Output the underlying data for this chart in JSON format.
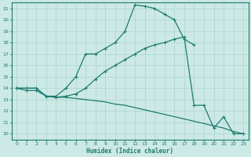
{
  "xlabel": "Humidex (Indice chaleur)",
  "bg_color": "#cce9e5",
  "grid_color": "#b0d8d2",
  "line_color": "#1e7b6e",
  "xlim": [
    -0.5,
    23.5
  ],
  "ylim": [
    9.5,
    21.5
  ],
  "xticks": [
    0,
    1,
    2,
    3,
    4,
    5,
    6,
    7,
    8,
    9,
    10,
    11,
    12,
    13,
    14,
    15,
    16,
    17,
    18,
    19,
    20,
    21,
    22,
    23
  ],
  "yticks": [
    10,
    11,
    12,
    13,
    14,
    15,
    16,
    17,
    18,
    19,
    20,
    21
  ],
  "line1_x": [
    0,
    1,
    2,
    3,
    4,
    5,
    6,
    7,
    8,
    9,
    10,
    11,
    12,
    13,
    14,
    15,
    16,
    17,
    18
  ],
  "line1_y": [
    14,
    13.8,
    13.8,
    13.3,
    13.3,
    14,
    15,
    17,
    17,
    17.5,
    18,
    19,
    21.3,
    21.2,
    21,
    20.5,
    20,
    18.3,
    17.8
  ],
  "line2_x": [
    0,
    1,
    2,
    3,
    4,
    5,
    6,
    7,
    8,
    9,
    10,
    11,
    12,
    13,
    14,
    15,
    16,
    17,
    18,
    19,
    20,
    21,
    22,
    23
  ],
  "line2_y": [
    14,
    14,
    14,
    13.3,
    13.2,
    13.3,
    13.5,
    14,
    14.8,
    15.5,
    16,
    16.5,
    17,
    17.5,
    17.8,
    18,
    18.3,
    18.5,
    12.5,
    12.5,
    10.5,
    11.5,
    10,
    10
  ],
  "line3_x": [
    0,
    1,
    2,
    3,
    4,
    5,
    6,
    7,
    8,
    9,
    10,
    11,
    12,
    13,
    14,
    15,
    16,
    17,
    18,
    19,
    20,
    21,
    22,
    23
  ],
  "line3_y": [
    14,
    14,
    14,
    13.3,
    13.2,
    13.2,
    13.1,
    13.0,
    12.9,
    12.8,
    12.6,
    12.5,
    12.3,
    12.1,
    11.9,
    11.7,
    11.5,
    11.3,
    11.1,
    10.9,
    10.7,
    10.5,
    10.2,
    10.0
  ]
}
